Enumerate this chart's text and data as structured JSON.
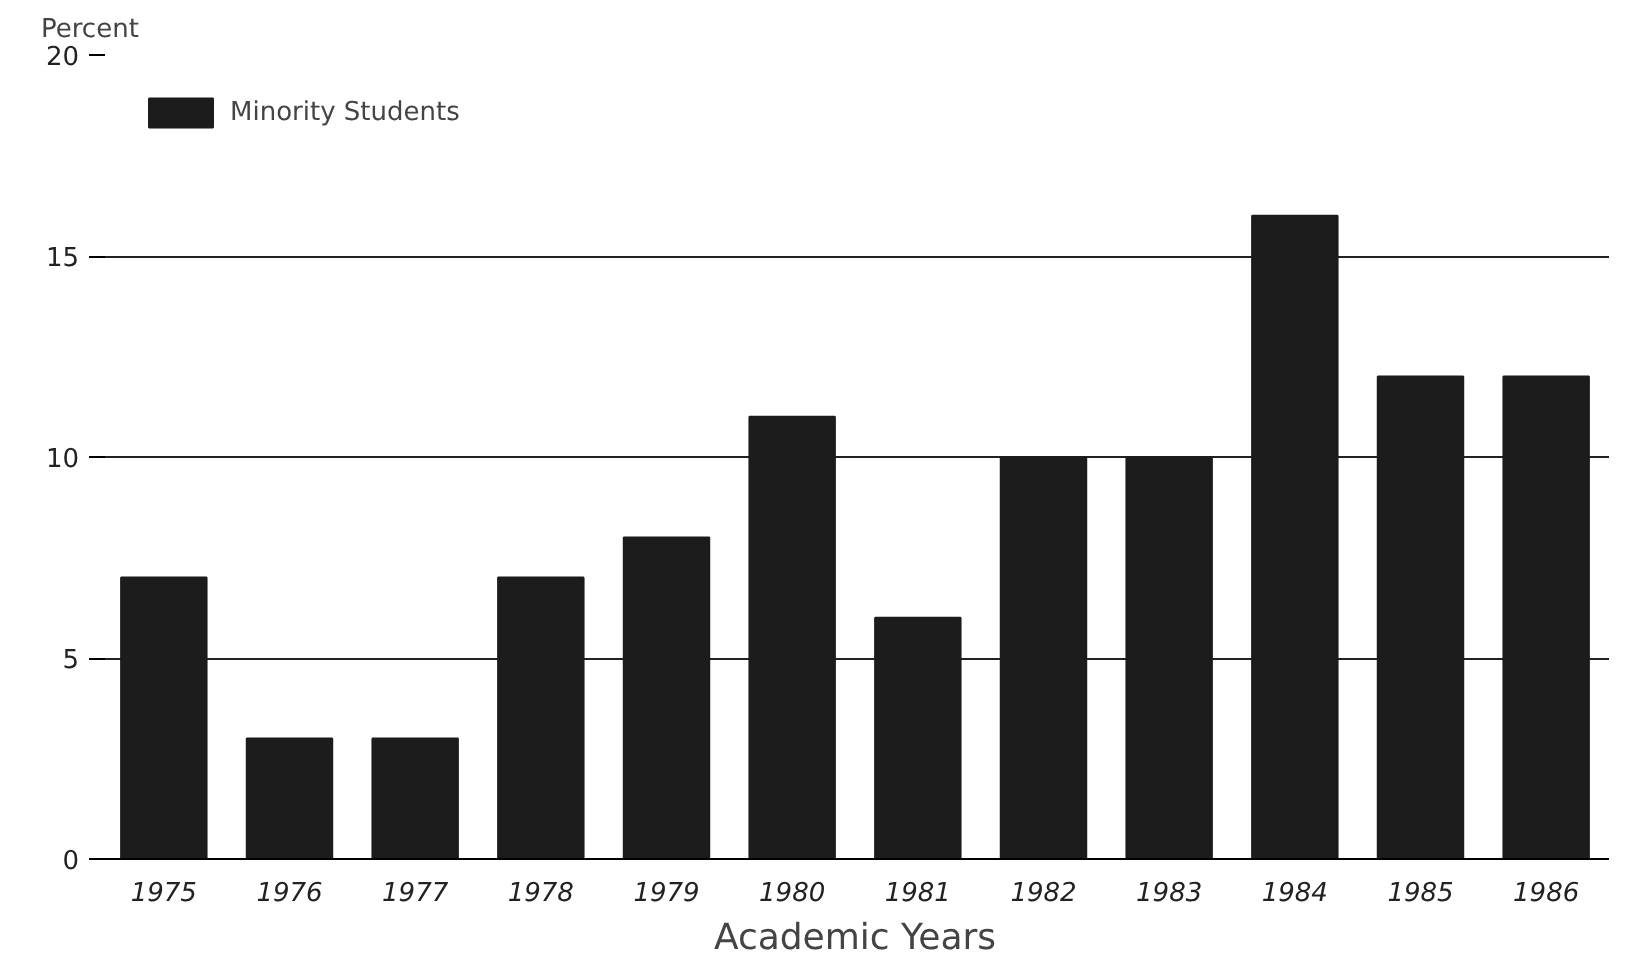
{
  "chart_data": {
    "type": "bar",
    "xlabel": "Academic Years",
    "ylabel": "Percent",
    "categories": [
      "1975",
      "1976",
      "1977",
      "1978",
      "1979",
      "1980",
      "1981",
      "1982",
      "1983",
      "1984",
      "1985",
      "1986"
    ],
    "series": [
      {
        "name": "Minority Students",
        "color": "#1c1c1c",
        "values": [
          7,
          3,
          3,
          7,
          8,
          11,
          6,
          10,
          10,
          16,
          12,
          12
        ]
      }
    ],
    "ylim": [
      0,
      20
    ],
    "yticks": [
      0,
      5,
      10,
      15,
      20
    ],
    "grid": "y",
    "legend": "top left"
  }
}
